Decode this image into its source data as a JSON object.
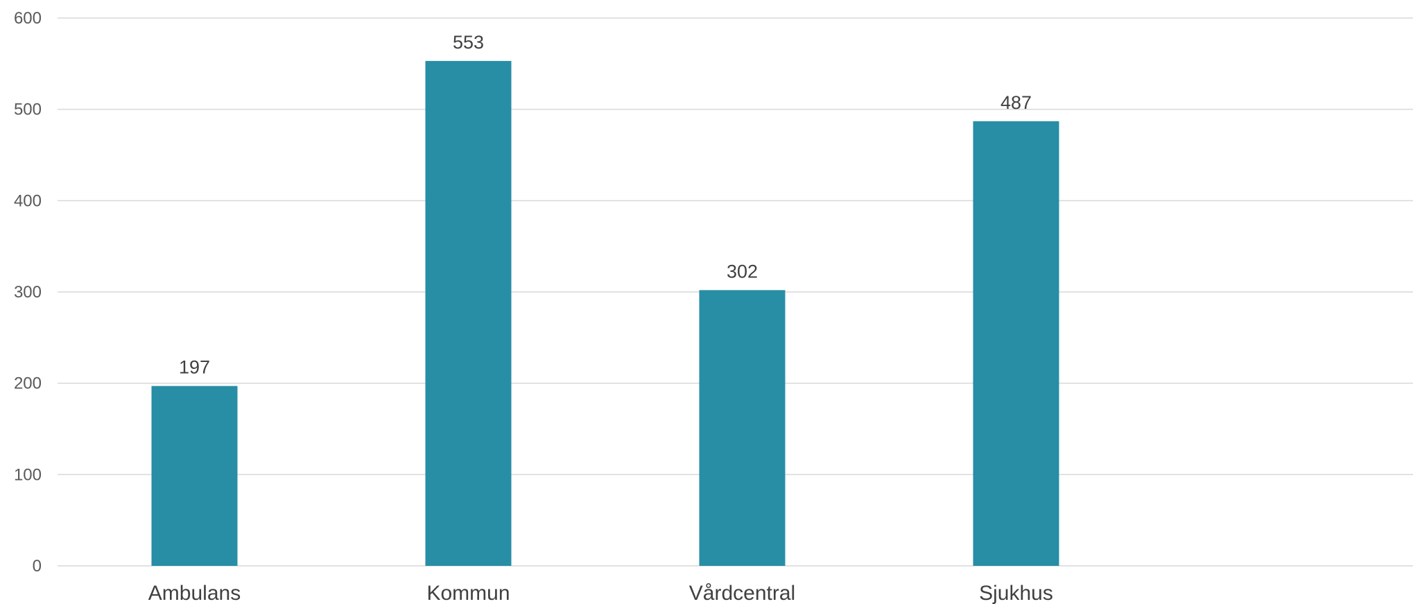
{
  "chart_data": {
    "type": "bar",
    "categories": [
      "Ambulans",
      "Kommun",
      "Vårdcentral",
      "Sjukhus"
    ],
    "values": [
      197,
      553,
      302,
      487
    ],
    "ylim": [
      0,
      600
    ],
    "yticks": [
      0,
      100,
      200,
      300,
      400,
      500,
      600
    ],
    "grid": true,
    "legend": "none",
    "data_labels": true,
    "bar_color": "#278ea5"
  }
}
